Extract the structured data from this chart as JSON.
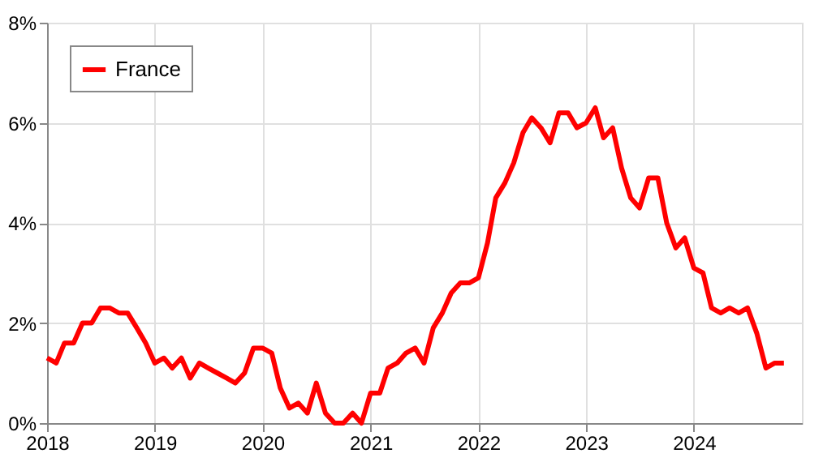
{
  "chart_data": {
    "type": "line",
    "x": [
      "2018-01",
      "2018-02",
      "2018-03",
      "2018-04",
      "2018-05",
      "2018-06",
      "2018-07",
      "2018-08",
      "2018-09",
      "2018-10",
      "2018-11",
      "2018-12",
      "2019-01",
      "2019-02",
      "2019-03",
      "2019-04",
      "2019-05",
      "2019-06",
      "2019-07",
      "2019-08",
      "2019-09",
      "2019-10",
      "2019-11",
      "2019-12",
      "2020-01",
      "2020-02",
      "2020-03",
      "2020-04",
      "2020-05",
      "2020-06",
      "2020-07",
      "2020-08",
      "2020-09",
      "2020-10",
      "2020-11",
      "2020-12",
      "2021-01",
      "2021-02",
      "2021-03",
      "2021-04",
      "2021-05",
      "2021-06",
      "2021-07",
      "2021-08",
      "2021-09",
      "2021-10",
      "2021-11",
      "2021-12",
      "2022-01",
      "2022-02",
      "2022-03",
      "2022-04",
      "2022-05",
      "2022-06",
      "2022-07",
      "2022-08",
      "2022-09",
      "2022-10",
      "2022-11",
      "2022-12",
      "2023-01",
      "2023-02",
      "2023-03",
      "2023-04",
      "2023-05",
      "2023-06",
      "2023-07",
      "2023-08",
      "2023-09",
      "2023-10",
      "2023-11",
      "2023-12",
      "2024-01",
      "2024-02",
      "2024-03",
      "2024-04",
      "2024-05",
      "2024-06",
      "2024-07",
      "2024-08",
      "2024-09",
      "2024-10",
      "2024-11"
    ],
    "series": [
      {
        "name": "France",
        "color": "#ff0000",
        "values": [
          1.3,
          1.2,
          1.6,
          1.6,
          2.0,
          2.0,
          2.3,
          2.3,
          2.2,
          2.2,
          1.9,
          1.6,
          1.2,
          1.3,
          1.1,
          1.3,
          0.9,
          1.2,
          1.1,
          1.0,
          0.9,
          0.8,
          1.0,
          1.5,
          1.5,
          1.4,
          0.7,
          0.3,
          0.4,
          0.2,
          0.8,
          0.2,
          0.0,
          0.0,
          0.2,
          0.0,
          0.6,
          0.6,
          1.1,
          1.2,
          1.4,
          1.5,
          1.2,
          1.9,
          2.2,
          2.6,
          2.8,
          2.8,
          2.9,
          3.6,
          4.5,
          4.8,
          5.2,
          5.8,
          6.1,
          5.9,
          5.6,
          6.2,
          6.2,
          5.9,
          6.0,
          6.3,
          5.7,
          5.9,
          5.1,
          4.5,
          4.3,
          4.9,
          4.9,
          4.0,
          3.5,
          3.7,
          3.1,
          3.0,
          2.3,
          2.2,
          2.3,
          2.2,
          2.3,
          1.8,
          1.1,
          1.2,
          1.2
        ]
      }
    ],
    "xlim": [
      "2018-01",
      "2025-01"
    ],
    "xticks": [
      "2018",
      "2019",
      "2020",
      "2021",
      "2022",
      "2023",
      "2024"
    ],
    "ylim": [
      0,
      8
    ],
    "yticks": [
      {
        "value": 0,
        "label": "0%"
      },
      {
        "value": 2,
        "label": "2%"
      },
      {
        "value": 4,
        "label": "4%"
      },
      {
        "value": 6,
        "label": "6%"
      },
      {
        "value": 8,
        "label": "8%"
      }
    ],
    "grid": true,
    "legend": "top left",
    "marker": "none",
    "line_style": "solid"
  }
}
